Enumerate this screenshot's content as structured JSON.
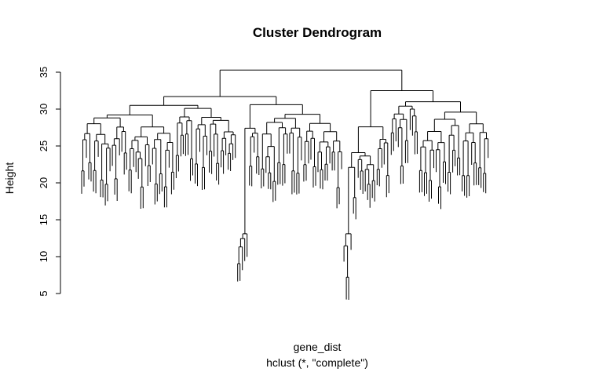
{
  "chart_data": {
    "type": "dendrogram",
    "title": "Cluster Dendrogram",
    "ylabel": "Height",
    "xlabel": "gene_dist",
    "sublabel": "hclust (*, \"complete\")",
    "yticks": [
      5,
      10,
      15,
      20,
      25,
      30,
      35
    ],
    "ylim": [
      5,
      35
    ],
    "grid": false,
    "legend": "none",
    "line_color": "#000000",
    "leaves_count": 200,
    "root_height": 35.3,
    "major_merges": [
      {
        "cluster": "left",
        "height": 31.7
      },
      {
        "cluster": "left-a",
        "height": 30.5
      },
      {
        "cluster": "left-b",
        "height": 30.6
      },
      {
        "cluster": "right",
        "height": 32.5
      },
      {
        "cluster": "right-a",
        "height": 31.0
      }
    ]
  }
}
